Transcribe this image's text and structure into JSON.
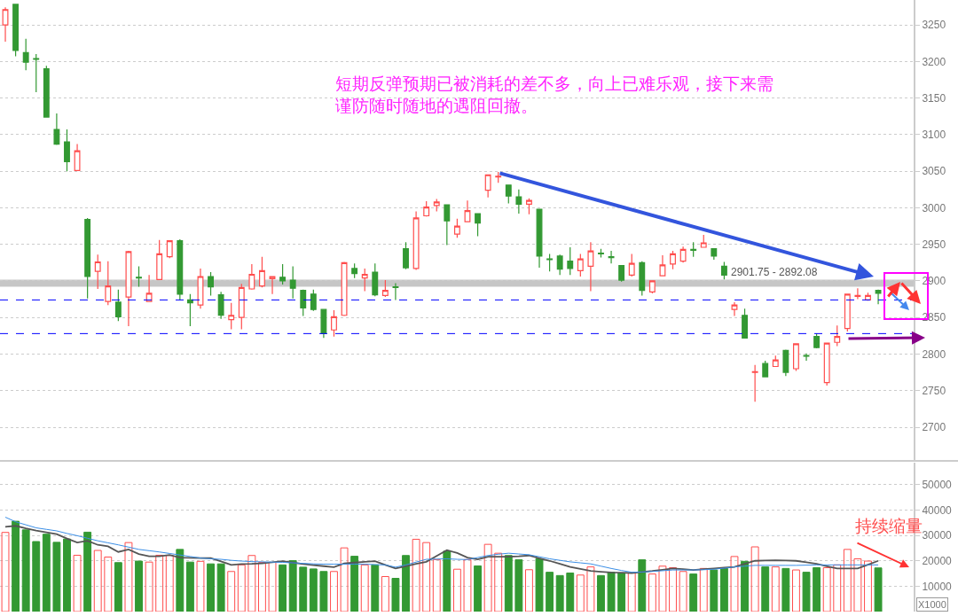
{
  "chart_data": [
    {
      "type": "candlestick",
      "categories": [
        null,
        null,
        null,
        null,
        null,
        null,
        null,
        null,
        null,
        null,
        null,
        null,
        null,
        null,
        null,
        null,
        null,
        null,
        null,
        null,
        null,
        null,
        null,
        null,
        null,
        null,
        null,
        null,
        null,
        null,
        null,
        null,
        null,
        null,
        null,
        null,
        null,
        null,
        null,
        null,
        null,
        null,
        null,
        null,
        null,
        null,
        null,
        null,
        null,
        null,
        null,
        null,
        null,
        null,
        null,
        null,
        null,
        null,
        null,
        null,
        null,
        null,
        null,
        null,
        null,
        null,
        null,
        null,
        null,
        null,
        null,
        null,
        null,
        null,
        null,
        null,
        null,
        null,
        null,
        null,
        null,
        null,
        null,
        null,
        null,
        null
      ],
      "ohlc": [
        [
          3250,
          3274,
          3227,
          3271
        ],
        [
          3278,
          3279,
          3207,
          3215
        ],
        [
          3212,
          3231,
          3188,
          3199
        ],
        [
          3204,
          3210,
          3158,
          3203
        ],
        [
          3190,
          3194,
          3124,
          3124
        ],
        [
          3107,
          3129,
          3086,
          3087
        ],
        [
          3090,
          3107,
          3050,
          3063
        ],
        [
          3051,
          3087,
          3051,
          3078
        ],
        [
          2984,
          2986,
          2876,
          2906
        ],
        [
          2913,
          2936,
          2889,
          2926
        ],
        [
          2872,
          2927,
          2867,
          2893
        ],
        [
          2871,
          2888,
          2845,
          2851
        ],
        [
          2878,
          2941,
          2838,
          2940
        ],
        [
          2905,
          2920,
          2892,
          2904
        ],
        [
          2872,
          2908,
          2872,
          2883
        ],
        [
          2902,
          2956,
          2902,
          2937
        ],
        [
          2933,
          2955,
          2931,
          2955
        ],
        [
          2955,
          2957,
          2874,
          2882
        ],
        [
          2874,
          2882,
          2838,
          2870
        ],
        [
          2867,
          2917,
          2862,
          2906
        ],
        [
          2906,
          2912,
          2880,
          2892
        ],
        [
          2881,
          2885,
          2848,
          2853
        ],
        [
          2847,
          2870,
          2834,
          2853
        ],
        [
          2850,
          2896,
          2834,
          2891
        ],
        [
          2889,
          2923,
          2888,
          2909
        ],
        [
          2893,
          2933,
          2891,
          2914
        ],
        [
          2903,
          2906,
          2882,
          2906
        ],
        [
          2905,
          2923,
          2895,
          2900
        ],
        [
          2901,
          2920,
          2876,
          2890
        ],
        [
          2887,
          2888,
          2852,
          2863
        ],
        [
          2882,
          2888,
          2859,
          2861
        ],
        [
          2861,
          2861,
          2822,
          2828
        ],
        [
          2833,
          2860,
          2824,
          2851
        ],
        [
          2853,
          2926,
          2852,
          2925
        ],
        [
          2917,
          2924,
          2904,
          2910
        ],
        [
          2904,
          2917,
          2886,
          2909
        ],
        [
          2912,
          2924,
          2879,
          2881
        ],
        [
          2880,
          2901,
          2878,
          2887
        ],
        [
          2892,
          2897,
          2874,
          2891
        ],
        [
          2944,
          2953,
          2916,
          2918
        ],
        [
          2917,
          2995,
          2915,
          2986
        ],
        [
          2989,
          3009,
          2988,
          3001
        ],
        [
          3003,
          3012,
          2995,
          3008
        ],
        [
          3004,
          3004,
          2949,
          2982
        ],
        [
          2964,
          2985,
          2959,
          2975
        ],
        [
          2981,
          3010,
          2981,
          2996
        ],
        [
          2992,
          2992,
          2961,
          2979
        ],
        [
          3024,
          3045,
          3014,
          3045
        ],
        [
          3042,
          3049,
          3034,
          3043
        ],
        [
          3031,
          3031,
          3006,
          3016
        ],
        [
          3015,
          3025,
          2992,
          3005
        ],
        [
          3005,
          3013,
          2991,
          3010
        ],
        [
          2998,
          2998,
          2918,
          2934
        ],
        [
          2930,
          2937,
          2913,
          2929
        ],
        [
          2934,
          2936,
          2908,
          2916
        ],
        [
          2927,
          2946,
          2908,
          2917
        ],
        [
          2914,
          2937,
          2906,
          2930
        ],
        [
          2920,
          2953,
          2886,
          2941
        ],
        [
          2938,
          2944,
          2932,
          2937
        ],
        [
          2933,
          2941,
          2924,
          2932
        ],
        [
          2921,
          2921,
          2899,
          2901
        ],
        [
          2908,
          2937,
          2906,
          2924
        ],
        [
          2925,
          2927,
          2880,
          2887
        ],
        [
          2885,
          2900,
          2883,
          2900
        ],
        [
          2907,
          2935,
          2907,
          2922
        ],
        [
          2923,
          2941,
          2916,
          2937
        ],
        [
          2927,
          2947,
          2925,
          2943
        ],
        [
          2943,
          2953,
          2933,
          2942
        ],
        [
          2946,
          2963,
          2946,
          2952
        ],
        [
          2944,
          2944,
          2929,
          2934
        ],
        [
          2920,
          2926,
          2902,
          2908
        ],
        [
          2861,
          2871,
          2852,
          2867
        ],
        [
          2853,
          2862,
          2822,
          2822
        ],
        [
          2775,
          2785,
          2735,
          2776
        ],
        [
          2787,
          2791,
          2769,
          2769
        ],
        [
          2783,
          2798,
          2783,
          2792
        ],
        [
          2805,
          2806,
          2770,
          2775
        ],
        [
          2780,
          2814,
          2777,
          2814
        ],
        [
          2798,
          2801,
          2791,
          2797
        ],
        [
          2824,
          2828,
          2808,
          2809
        ],
        [
          2761,
          2815,
          2757,
          2815
        ],
        [
          2816,
          2839,
          2811,
          2824
        ],
        [
          2835,
          2882,
          2831,
          2882
        ],
        [
          2879,
          2890,
          2875,
          2880
        ],
        [
          2874,
          2884,
          2873,
          2880
        ],
        [
          2887,
          2888,
          2868,
          2883
        ]
      ],
      "colors": [
        "#ff4d4d",
        "#339933",
        "#339933",
        "#339933",
        "#339933",
        "#339933",
        "#339933",
        "#ff4d4d",
        "#339933",
        "#ff4d4d",
        "#ff4d4d",
        "#339933",
        "#ff4d4d",
        "#339933",
        "#ff4d4d",
        "#ff4d4d",
        "#ff4d4d",
        "#339933",
        "#339933",
        "#ff4d4d",
        "#339933",
        "#339933",
        "#ff4d4d",
        "#ff4d4d",
        "#ff4d4d",
        "#ff4d4d",
        "#ff4d4d",
        "#339933",
        "#339933",
        "#339933",
        "#339933",
        "#339933",
        "#ff4d4d",
        "#ff4d4d",
        "#339933",
        "#ff4d4d",
        "#339933",
        "#ff4d4d",
        "#339933",
        "#339933",
        "#ff4d4d",
        "#ff4d4d",
        "#ff4d4d",
        "#339933",
        "#ff4d4d",
        "#ff4d4d",
        "#339933",
        "#ff4d4d",
        "#ff4d4d",
        "#339933",
        "#339933",
        "#ff4d4d",
        "#339933",
        "#339933",
        "#339933",
        "#339933",
        "#ff4d4d",
        "#ff4d4d",
        "#339933",
        "#339933",
        "#339933",
        "#ff4d4d",
        "#339933",
        "#ff4d4d",
        "#ff4d4d",
        "#ff4d4d",
        "#ff4d4d",
        "#339933",
        "#ff4d4d",
        "#339933",
        "#339933",
        "#ff4d4d",
        "#339933",
        "#ff4d4d",
        "#339933",
        "#ff4d4d",
        "#339933",
        "#ff4d4d",
        "#339933",
        "#339933",
        "#ff4d4d",
        "#ff4d4d",
        "#ff4d4d",
        "#ff4d4d",
        "#ff4d4d",
        "#339933"
      ],
      "ylim": [
        2654,
        3284
      ],
      "yticks": [
        2700,
        2750,
        2800,
        2850,
        2900,
        2950,
        3000,
        3050,
        3100,
        3150,
        3200,
        3250
      ],
      "grid": "y",
      "tick_labels": "y",
      "ref_lines": [
        {
          "axis": "y",
          "value": 2874,
          "color": "#0000ff",
          "line_style": "dashed"
        },
        {
          "axis": "y",
          "value": 2828,
          "color": "#0000ff",
          "line_style": "dashed"
        }
      ],
      "bands": [
        {
          "axis": "y",
          "from": 2892.08,
          "to": 2901.75,
          "label": "2901.75 - 2892.08",
          "color": "#808080"
        }
      ],
      "annotations": [
        "短期反弹预期已被消耗的差不多，向上已难乐观，接下来需谨防随时随地的遇阻回撤。"
      ]
    },
    {
      "type": "bar",
      "categories": [
        null,
        null,
        null,
        null,
        null,
        null,
        null,
        null,
        null,
        null,
        null,
        null,
        null,
        null,
        null,
        null,
        null,
        null,
        null,
        null,
        null,
        null,
        null,
        null,
        null,
        null,
        null,
        null,
        null,
        null,
        null,
        null,
        null,
        null,
        null,
        null,
        null,
        null,
        null,
        null,
        null,
        null,
        null,
        null,
        null,
        null,
        null,
        null,
        null,
        null,
        null,
        null,
        null,
        null,
        null,
        null,
        null,
        null,
        null,
        null,
        null,
        null,
        null,
        null,
        null,
        null,
        null,
        null,
        null,
        null,
        null,
        null,
        null,
        null,
        null,
        null,
        null,
        null,
        null,
        null,
        null,
        null,
        null,
        null,
        null,
        null
      ],
      "series": [
        {
          "type": "bar",
          "colors": [
            "#ff4d4d",
            "#339933",
            "#339933",
            "#339933",
            "#339933",
            "#339933",
            "#339933",
            "#ff4d4d",
            "#339933",
            "#ff4d4d",
            "#ff4d4d",
            "#339933",
            "#ff4d4d",
            "#339933",
            "#ff4d4d",
            "#ff4d4d",
            "#ff4d4d",
            "#339933",
            "#339933",
            "#ff4d4d",
            "#339933",
            "#339933",
            "#ff4d4d",
            "#ff4d4d",
            "#ff4d4d",
            "#ff4d4d",
            "#ff4d4d",
            "#339933",
            "#339933",
            "#339933",
            "#339933",
            "#339933",
            "#ff4d4d",
            "#ff4d4d",
            "#339933",
            "#ff4d4d",
            "#339933",
            "#ff4d4d",
            "#339933",
            "#339933",
            "#ff4d4d",
            "#ff4d4d",
            "#ff4d4d",
            "#339933",
            "#ff4d4d",
            "#ff4d4d",
            "#339933",
            "#ff4d4d",
            "#ff4d4d",
            "#339933",
            "#339933",
            "#ff4d4d",
            "#339933",
            "#339933",
            "#339933",
            "#339933",
            "#ff4d4d",
            "#ff4d4d",
            "#339933",
            "#339933",
            "#339933",
            "#ff4d4d",
            "#339933",
            "#ff4d4d",
            "#ff4d4d",
            "#ff4d4d",
            "#ff4d4d",
            "#339933",
            "#ff4d4d",
            "#339933",
            "#339933",
            "#ff4d4d",
            "#339933",
            "#ff4d4d",
            "#339933",
            "#ff4d4d",
            "#339933",
            "#ff4d4d",
            "#339933",
            "#339933",
            "#ff4d4d",
            "#ff4d4d",
            "#ff4d4d",
            "#ff4d4d",
            "#ff4d4d",
            "#339933"
          ],
          "values": [
            31200,
            35600,
            32200,
            27600,
            30500,
            27300,
            28600,
            22200,
            31300,
            24100,
            21500,
            19300,
            27200,
            19900,
            19500,
            22200,
            22100,
            24500,
            19500,
            19800,
            18800,
            18800,
            15800,
            18400,
            22100,
            19400,
            19400,
            18400,
            20100,
            17500,
            16800,
            15800,
            15800,
            25100,
            21800,
            18400,
            18400,
            13800,
            13100,
            22100,
            28500,
            27200,
            20500,
            23800,
            16700,
            20500,
            18000,
            26500,
            23000,
            22100,
            20400,
            16500,
            20800,
            15500,
            14200,
            15200,
            14400,
            17600,
            14200,
            15500,
            15200,
            15200,
            20400,
            14800,
            17900,
            17300,
            15800,
            14800,
            17000,
            16400,
            17000,
            21700,
            19800,
            25500,
            17600,
            17600,
            17000,
            16400,
            15500,
            17300,
            17300,
            18400,
            24500,
            20800,
            19900,
            17200
          ]
        },
        {
          "type": "line",
          "color": "#555555",
          "values": [
            33400,
            33800,
            32800,
            31900,
            31200,
            30500,
            28800,
            27200,
            27900,
            26300,
            25700,
            23500,
            24500,
            22700,
            21800,
            21800,
            22300,
            21300,
            21200,
            21100,
            21100,
            19800,
            18400,
            18700,
            18800,
            19000,
            19400,
            19900,
            19300,
            18700,
            18300,
            17900,
            17500,
            19000,
            19300,
            19600,
            19900,
            18400,
            17000,
            17900,
            18800,
            19600,
            21900,
            24200,
            23100,
            21300,
            20600,
            21600,
            21600,
            21600,
            21800,
            22100,
            21000,
            20000,
            18800,
            17600,
            16800,
            16000,
            15700,
            15400,
            15300,
            15200,
            15600,
            16000,
            16500,
            17000,
            16700,
            16400,
            16700,
            17000,
            17300,
            17600,
            18800,
            20000,
            20100,
            20200,
            20100,
            20000,
            19400,
            18800,
            17900,
            17000,
            17000,
            17000,
            18500,
            20000
          ]
        },
        {
          "type": "line",
          "color": "#3a8ee6",
          "values": [
            37200,
            35400,
            34200,
            33000,
            32400,
            31800,
            30800,
            29900,
            28900,
            27900,
            27100,
            26300,
            25400,
            24500,
            24000,
            23500,
            22900,
            22300,
            21700,
            21100,
            20800,
            20600,
            20200,
            19900,
            19700,
            19600,
            19500,
            19400,
            19200,
            19000,
            18800,
            18700,
            18700,
            18700,
            18700,
            18700,
            18500,
            18400,
            17500,
            18400,
            19500,
            20600,
            20700,
            20800,
            20600,
            20500,
            21300,
            22100,
            22600,
            23000,
            22700,
            22400,
            21600,
            20800,
            20200,
            19600,
            19200,
            18800,
            17900,
            17000,
            16200,
            15500,
            15600,
            15800,
            16100,
            16400,
            16400,
            16400,
            16500,
            16700,
            17100,
            17600,
            17900,
            18200,
            18200,
            18200,
            18200,
            18200,
            18300,
            18400,
            18400,
            18400,
            18400,
            18400,
            18400,
            18400
          ]
        }
      ],
      "ylim": [
        0,
        58700
      ],
      "yticks": [
        10000,
        20000,
        30000,
        40000,
        50000
      ],
      "grid": "y",
      "tick_labels": "y",
      "annotations": [
        "持续缩量",
        "X1000"
      ]
    }
  ]
}
